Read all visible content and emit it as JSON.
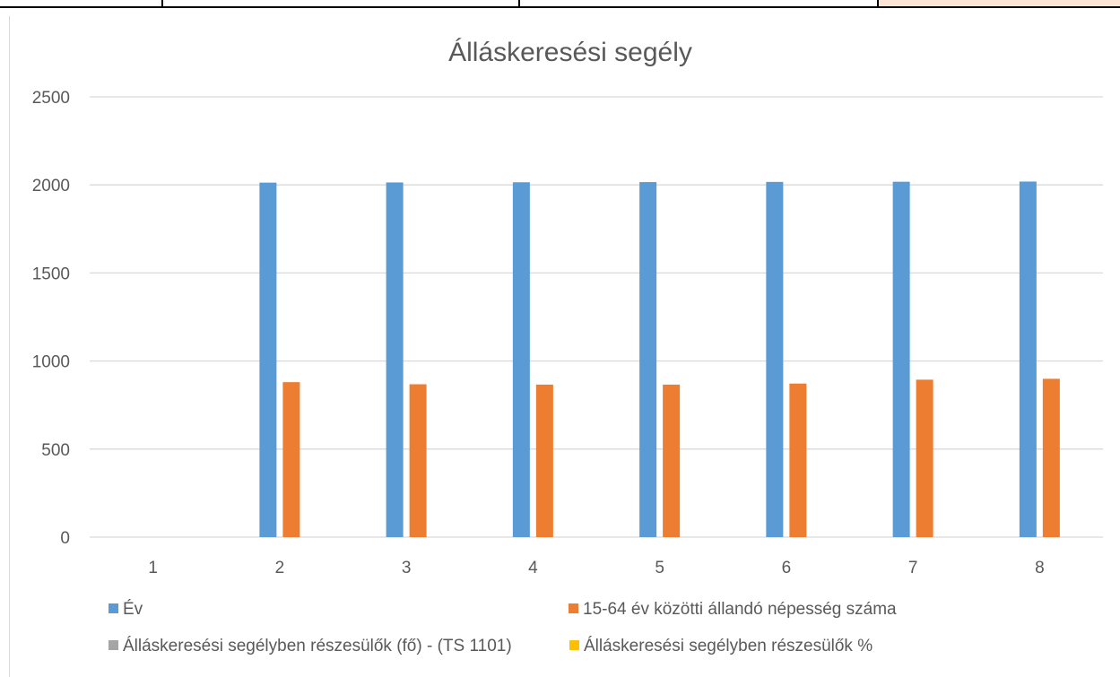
{
  "chart_data": {
    "type": "bar",
    "title": "Álláskeresési segély",
    "categories": [
      "1",
      "2",
      "3",
      "4",
      "5",
      "6",
      "7",
      "8"
    ],
    "ylim": [
      0,
      2500
    ],
    "yticks": [
      0,
      500,
      1000,
      1500,
      2000,
      2500
    ],
    "grid": true,
    "legend_position": "bottom",
    "series": [
      {
        "name": "Év",
        "color": "#5b9bd5",
        "values": [
          null,
          2013,
          2014,
          2015,
          2016,
          2017,
          2018,
          2019
        ]
      },
      {
        "name": "15-64 év közötti állandó népesség száma",
        "color": "#ed7d31",
        "values": [
          null,
          880,
          868,
          866,
          866,
          872,
          894,
          899
        ]
      },
      {
        "name": "Álláskeresési segélyben részesülők (fő) - (TS 1101)",
        "color": "#a5a5a5",
        "values": [
          null,
          null,
          null,
          null,
          null,
          null,
          null,
          null
        ]
      },
      {
        "name": "Álláskeresési segélyben részesülők %",
        "color": "#ffc000",
        "values": [
          null,
          null,
          null,
          null,
          null,
          null,
          null,
          null
        ]
      }
    ]
  }
}
